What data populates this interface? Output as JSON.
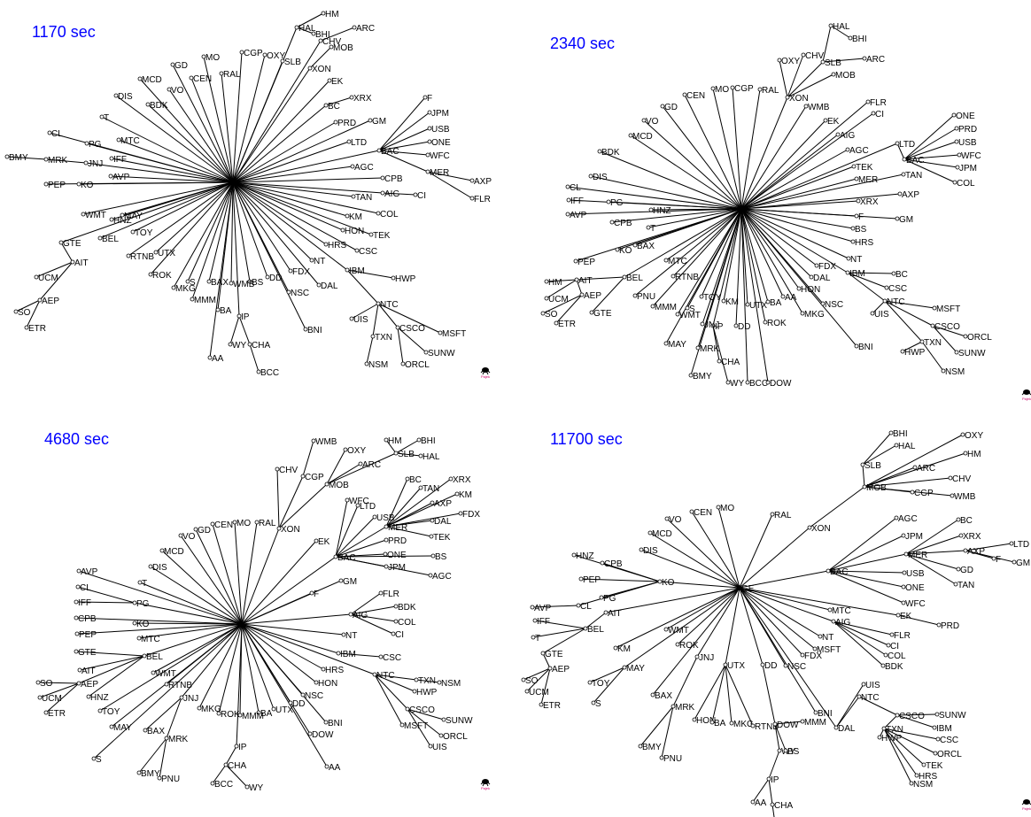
{
  "colors": {
    "title": "#0000ff",
    "edge": "#000000",
    "node_fill": "#ffffff",
    "logo": "#cc0066"
  },
  "logo_text": "Pajek",
  "panels": [
    {
      "title": "1170 sec",
      "hub": "",
      "children": {
        "": [
          "HAL",
          "CHV",
          "XON",
          "EK",
          "BC",
          "PRD",
          "GM",
          "LTD",
          "BAC",
          "AGC",
          "CPB",
          "TAN",
          "AIG",
          "KM",
          "HON",
          "HRS",
          "NT",
          "IBM",
          "FDX",
          "DAL",
          "NSC",
          "DD",
          "BS",
          "WMB",
          "MMM",
          "BAX",
          "S",
          "MKG",
          "ROK",
          "UTX",
          "RTNB",
          "TOY",
          "BEL",
          "GTE",
          "HNZ",
          "WMT",
          "MAY",
          "AVP",
          "KO",
          "JNJ",
          "IFF",
          "PG",
          "CL",
          "MTC",
          "T",
          "DIS",
          "BDK",
          "VO",
          "MCD",
          "GD",
          "CEN",
          "MO",
          "RAL",
          "CGP",
          "OXY",
          "SLB",
          "PEP",
          "IP",
          "BA",
          "AA",
          "BNI",
          "TEK",
          "COL",
          "CSC"
        ],
        "HAL": [
          "BHI",
          "HM"
        ],
        "CHV": [
          "ARC"
        ],
        "XON": [
          "MOB"
        ],
        "BC": [
          "XRX"
        ],
        "BAC": [
          "F",
          "JPM",
          "USB",
          "ONE",
          "WFC",
          "MER"
        ],
        "MER": [
          "AXP",
          "FLR"
        ],
        "AIG": [
          "CI"
        ],
        "IBM": [
          "HWP",
          "NTC"
        ],
        "NTC": [
          "UIS",
          "CSCO",
          "TXN",
          "MSFT"
        ],
        "CSCO": [
          "ORCL",
          "SUNW"
        ],
        "TXN": [
          "NSM"
        ],
        "IP": [
          "WY",
          "CHA"
        ],
        "CHA": [
          "BCC"
        ],
        "JNJ": [
          "MRK"
        ],
        "MRK": [
          "BMY"
        ],
        "GTE": [
          "AIT"
        ],
        "AIT": [
          "UCM",
          "AEP"
        ],
        "AEP": [
          "SO",
          "ETR"
        ]
      }
    },
    {
      "title": "2340 sec",
      "hub": "",
      "children": {
        "": [
          "XON",
          "WMB",
          "EK",
          "AIG",
          "AGC",
          "TEK",
          "MER",
          "XRX",
          "F",
          "BS",
          "HRS",
          "NT",
          "IBM",
          "FDX",
          "DAL",
          "HON",
          "NSC",
          "MKG",
          "ROK",
          "AA",
          "BA",
          "UTX",
          "DD",
          "IP",
          "KM",
          "JNJ",
          "MAY",
          "WMT",
          "TOY",
          "S",
          "RTNB",
          "MMM",
          "MTC",
          "BAX",
          "KO",
          "T",
          "BEL",
          "CPB",
          "HNZ",
          "PG",
          "DIS",
          "BDK",
          "MCD",
          "VO",
          "GD",
          "CEN",
          "MO",
          "CGP",
          "RAL",
          "LTD",
          "FLR",
          "CI",
          "TAN",
          "AXP",
          "GM",
          "BNI",
          "DOW",
          "BCC",
          "MRK",
          "BMY",
          "PEP",
          "PNU",
          "AVP",
          "IFF",
          "CL"
        ],
        "XON": [
          "CHV",
          "OXY",
          "SLB",
          "MOB"
        ],
        "SLB": [
          "HAL",
          "ARC"
        ],
        "HAL": [
          "BHI"
        ],
        "LTD": [
          "BAC"
        ],
        "BAC": [
          "ONE",
          "PRD",
          "USB",
          "WFC",
          "JPM",
          "COL"
        ],
        "IBM": [
          "BC",
          "CSC",
          "NTC"
        ],
        "NTC": [
          "MSFT",
          "UIS",
          "TXN",
          "CSCO"
        ],
        "CSCO": [
          "ORCL",
          "SUNW"
        ],
        "TXN": [
          "HWP",
          "NSM"
        ],
        "IP": [
          "CHA",
          "WY"
        ],
        "BEL": [
          "AIT",
          "GTE"
        ],
        "AIT": [
          "HM",
          "UCM",
          "AEP"
        ],
        "AEP": [
          "SO",
          "ETR"
        ]
      }
    },
    {
      "title": "4680 sec",
      "hub": "",
      "children": {
        "": [
          "XON",
          "EK",
          "BAC",
          "F",
          "GM",
          "AIG",
          "NT",
          "IBM",
          "HRS",
          "HON",
          "NSC",
          "BNI",
          "DOW",
          "AA",
          "DD",
          "UTX",
          "BA",
          "MMM",
          "ROK",
          "MKG",
          "IP",
          "JNJ",
          "RTNB",
          "WMT",
          "MTC",
          "BEL",
          "KO",
          "PG",
          "T",
          "DIS",
          "MCD",
          "VO",
          "GD",
          "CEN",
          "MO",
          "RAL",
          "NTC",
          "AVP",
          "PEP",
          "CPB",
          "TOY",
          "MAY",
          "S"
        ],
        "XON": [
          "CHV",
          "CGP",
          "MOB"
        ],
        "CGP": [
          "WMB"
        ],
        "MOB": [
          "OXY",
          "ARC",
          "SLB"
        ],
        "SLB": [
          "HM",
          "BHI",
          "HAL"
        ],
        "BAC": [
          "WFC",
          "LTD",
          "USB",
          "MER",
          "PRD",
          "ONE",
          "JPM",
          "BS",
          "AGC"
        ],
        "MER": [
          "BC",
          "TAN",
          "XRX",
          "AXP",
          "KM",
          "DAL",
          "FDX",
          "TEK"
        ],
        "AIG": [
          "FLR",
          "BDK",
          "COL",
          "CI"
        ],
        "IBM": [
          "CSC"
        ],
        "NTC": [
          "TXN",
          "HWP",
          "CSCO",
          "MSFT"
        ],
        "TXN": [
          "NSM"
        ],
        "CSCO": [
          "SUNW",
          "ORCL",
          "UIS"
        ],
        "IP": [
          "CHA"
        ],
        "CHA": [
          "BCC",
          "WY"
        ],
        "JNJ": [
          "BAX",
          "MRK"
        ],
        "MRK": [
          "BMY",
          "PNU"
        ],
        "BEL": [
          "GTE",
          "AIT",
          "AEP",
          "HNZ"
        ],
        "AEP": [
          "SO",
          "UCM",
          "ETR"
        ],
        "PG": [
          "CL",
          "IFF"
        ]
      }
    },
    {
      "title": "11700 sec",
      "hub": "GE",
      "children": {
        "GE": [
          "XON",
          "RAL",
          "MO",
          "CEN",
          "VO",
          "MCD",
          "DIS",
          "KO",
          "AIT",
          "WMT",
          "KM",
          "MAY",
          "ROK",
          "JNJ",
          "UTX",
          "DD",
          "NSC",
          "BNI",
          "DAL",
          "NT",
          "MTC",
          "AIG",
          "EK",
          "BAC",
          "MSFT",
          "FDX",
          "BAX"
        ],
        "XON": [
          "MOB"
        ],
        "MOB": [
          "SLB",
          "ARC",
          "CHV",
          "CGP",
          "WMB",
          "HM",
          "OXY"
        ],
        "SLB": [
          "BHI",
          "HAL"
        ],
        "BAC": [
          "AGC",
          "JPM",
          "MER",
          "USB",
          "ONE",
          "WFC"
        ],
        "MER": [
          "BC",
          "XRX",
          "AXP",
          "GD",
          "TAN"
        ],
        "AXP": [
          "F",
          "LTD",
          "GM"
        ],
        "EK": [
          "PRD"
        ],
        "AIG": [
          "FLR",
          "CI",
          "COL",
          "BDK"
        ],
        "KO": [
          "HNZ",
          "CPB",
          "PEP",
          "PG",
          "CL"
        ],
        "CL": [
          "AVP"
        ],
        "AIT": [
          "BEL"
        ],
        "BEL": [
          "IFF",
          "T",
          "GTE"
        ],
        "GTE": [
          "AEP"
        ],
        "AEP": [
          "SO",
          "UCM",
          "ETR"
        ],
        "MAY": [
          "TOY",
          "S"
        ],
        "JNJ": [
          "MRK"
        ],
        "MRK": [
          "BMY",
          "PNU"
        ],
        "UTX": [
          "HON",
          "BA",
          "MKG",
          "RTNB"
        ],
        "DD": [
          "DOW"
        ],
        "DOW": [
          "WY",
          "BS",
          "MMM"
        ],
        "WY": [
          "IP"
        ],
        "IP": [
          "AA",
          "CHA"
        ],
        "CHA": [
          "BCC"
        ],
        "DAL": [
          "UIS",
          "NTC"
        ],
        "NTC": [
          "CSCO"
        ],
        "CSCO": [
          "SUNW",
          "IBM",
          "TXN"
        ],
        "TXN": [
          "HWP",
          "CSC",
          "ORCL",
          "TEK",
          "HRS",
          "NSM"
        ]
      }
    }
  ]
}
